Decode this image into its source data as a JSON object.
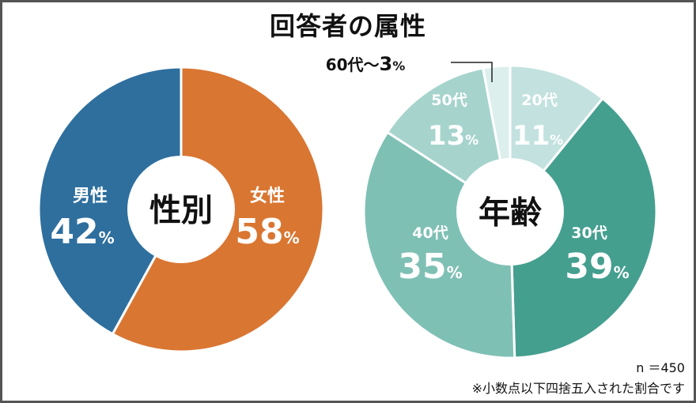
{
  "title": "回答者の属性",
  "footnote_n": "n ＝450",
  "footnote_rounding": "※小数点以下四捨五入された割合です",
  "chart_data": [
    {
      "type": "pie",
      "center_label": "性別",
      "slices": [
        {
          "category": "女性",
          "value": 58,
          "value_label": "58",
          "color": "#d97632"
        },
        {
          "category": "男性",
          "value": 42,
          "value_label": "42",
          "color": "#2e6f9e"
        }
      ],
      "unit": "%"
    },
    {
      "type": "pie",
      "center_label": "年齢",
      "slices": [
        {
          "category": "20代",
          "value": 11,
          "value_label": "11",
          "color": "#c3e2df"
        },
        {
          "category": "30代",
          "value": 39,
          "value_label": "39",
          "color": "#449f8f"
        },
        {
          "category": "40代",
          "value": 35,
          "value_label": "35",
          "color": "#7fc0b5"
        },
        {
          "category": "50代",
          "value": 13,
          "value_label": "13",
          "color": "#a6d4cd"
        },
        {
          "category": "60代～",
          "value": 3,
          "value_label": "3",
          "color": "#dcefed"
        }
      ],
      "unit": "%"
    }
  ]
}
